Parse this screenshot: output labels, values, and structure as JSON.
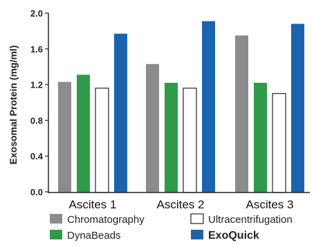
{
  "chart_data": {
    "type": "bar",
    "title": "",
    "xlabel": "",
    "ylabel": "Exosomal Protein (mg/ml)",
    "ylim": [
      0,
      2.0
    ],
    "yticks": [
      "0.0",
      "0.4",
      "0.8",
      "1.2",
      "1.6",
      "2.0"
    ],
    "grid": false,
    "legend_position": "bottom",
    "categories": [
      "Ascites 1",
      "Ascites 2",
      "Ascites 3"
    ],
    "series": [
      {
        "name": "Chromatography",
        "color": "#8c8c8e",
        "values": [
          1.23,
          1.43,
          1.75
        ]
      },
      {
        "name": "DynaBeads",
        "color": "#2e9a4a",
        "values": [
          1.31,
          1.22,
          1.22
        ]
      },
      {
        "name": "Ultracentrifugation",
        "color": "#ffffff",
        "values": [
          1.16,
          1.16,
          1.1
        ]
      },
      {
        "name": "ExoQuick",
        "color": "#1b64ad",
        "values": [
          1.77,
          1.91,
          1.88
        ]
      }
    ]
  }
}
